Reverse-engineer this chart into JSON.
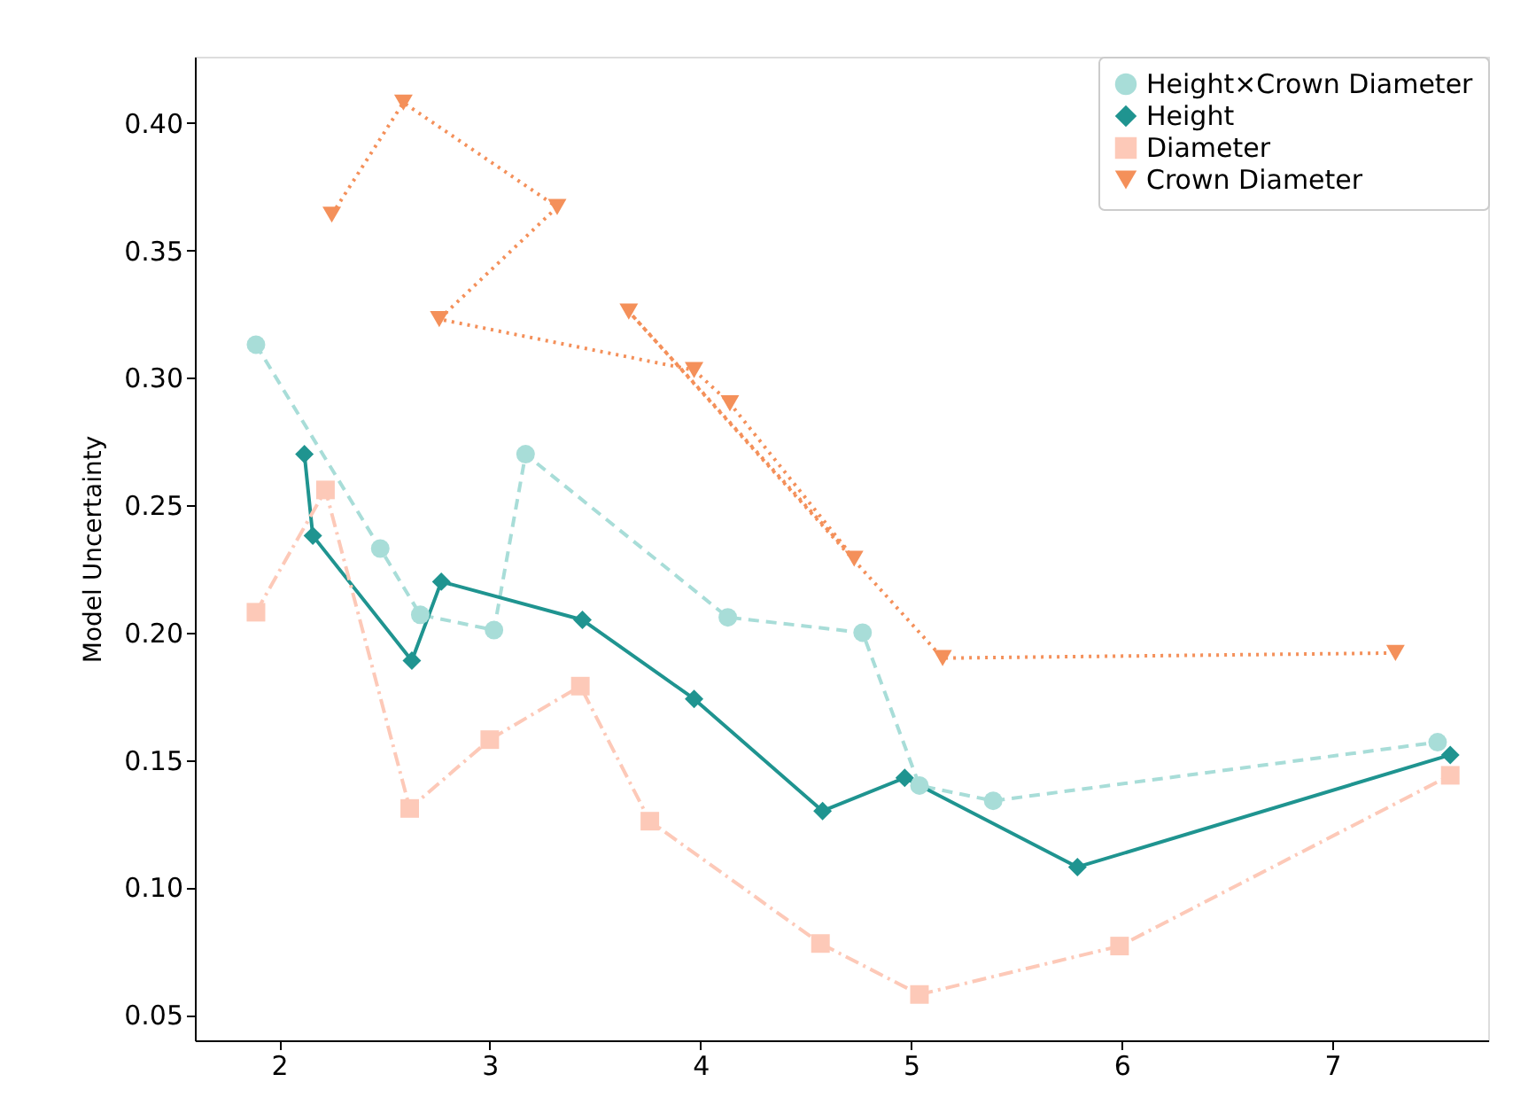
{
  "chart_data": {
    "type": "line",
    "ylabel": "Model Uncertainty",
    "xlim": [
      1.6,
      7.74
    ],
    "ylim": [
      0.04,
      0.426
    ],
    "xticks": [
      2,
      3,
      4,
      5,
      6,
      7
    ],
    "yticks": [
      {
        "value": 0.05,
        "label": "0.05"
      },
      {
        "value": 0.1,
        "label": "0.10"
      },
      {
        "value": 0.15,
        "label": "0.15"
      },
      {
        "value": 0.2,
        "label": "0.20"
      },
      {
        "value": 0.25,
        "label": "0.25"
      },
      {
        "value": 0.3,
        "label": "0.30"
      },
      {
        "value": 0.35,
        "label": "0.35"
      },
      {
        "value": 0.4,
        "label": "0.40"
      }
    ],
    "grid": false,
    "legend": "top right",
    "series": [
      {
        "name": "Height×Crown Diameter",
        "color": "#a8ddd8",
        "marker": "circle",
        "line_style": "dashed",
        "x": [
          1.89,
          2.48,
          2.67,
          3.02,
          3.17,
          4.13,
          4.77,
          5.04,
          5.39,
          7.5
        ],
        "values": [
          0.313,
          0.233,
          0.207,
          0.201,
          0.27,
          0.206,
          0.2,
          0.14,
          0.134,
          0.157
        ]
      },
      {
        "name": "Height",
        "color": "#1f9490",
        "marker": "diamond",
        "line_style": "solid",
        "x": [
          2.12,
          2.16,
          2.63,
          2.77,
          3.44,
          3.97,
          4.58,
          4.97,
          5.79,
          7.56
        ],
        "values": [
          0.27,
          0.238,
          0.189,
          0.22,
          0.205,
          0.174,
          0.13,
          0.143,
          0.108,
          0.152
        ]
      },
      {
        "name": "Diameter",
        "color": "#fdc9b8",
        "marker": "square",
        "line_style": "dashdot",
        "x": [
          1.89,
          2.22,
          2.62,
          3.0,
          3.43,
          3.76,
          4.57,
          5.04,
          5.99,
          7.56
        ],
        "values": [
          0.208,
          0.256,
          0.131,
          0.158,
          0.179,
          0.126,
          0.078,
          0.058,
          0.077,
          0.144
        ]
      },
      {
        "name": "Crown Diameter",
        "color": "#f4905a",
        "marker": "triangle-down",
        "line_style": "dotted",
        "x": [
          2.25,
          2.59,
          3.32,
          2.76,
          3.97,
          4.14,
          4.73,
          3.66,
          5.15,
          7.3
        ],
        "values": [
          0.364,
          0.408,
          0.367,
          0.323,
          0.303,
          0.29,
          0.229,
          0.326,
          0.19,
          0.192
        ]
      }
    ]
  }
}
